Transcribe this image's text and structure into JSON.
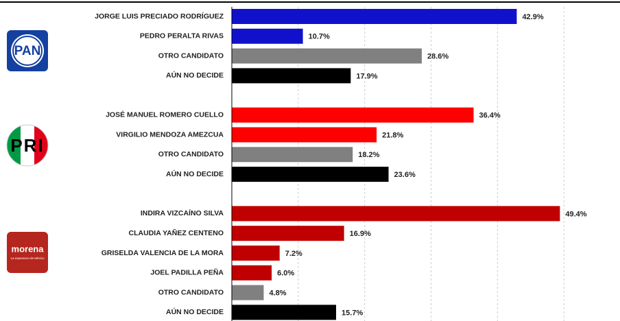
{
  "chart_data": {
    "type": "bar",
    "orientation": "horizontal",
    "grid": true,
    "xlim": [
      0,
      57
    ],
    "xticks": [
      10,
      20,
      30,
      40,
      50
    ],
    "groups": [
      {
        "logo": "PAN",
        "categories": [
          "JORGE LUIS PRECIADO RODRÍGUEZ",
          "PEDRO PERALTA RIVAS",
          "OTRO CANDIDATO",
          "AÚN NO DECIDE"
        ],
        "values": [
          42.9,
          10.7,
          28.6,
          17.9
        ],
        "value_labels": [
          "42.9%",
          "10.7%",
          "28.6%",
          "17.9%"
        ],
        "colors": [
          "#1111cc",
          "#1111cc",
          "#808080",
          "#000000"
        ]
      },
      {
        "logo": "PRI",
        "categories": [
          "JOSÉ MANUEL ROMERO CUELLO",
          "VIRGILIO MENDOZA AMEZCUA",
          "OTRO CANDIDATO",
          "AÚN NO DECIDE"
        ],
        "values": [
          36.4,
          21.8,
          18.2,
          23.6
        ],
        "value_labels": [
          "36.4%",
          "21.8%",
          "18.2%",
          "23.6%"
        ],
        "colors": [
          "#ff0000",
          "#ff0000",
          "#808080",
          "#000000"
        ]
      },
      {
        "logo": "morena",
        "logo_subtitle": "La esperanza de México",
        "categories": [
          "INDIRA VIZCAÍNO SILVA",
          "CLAUDIA YAÑEZ CENTENO",
          "GRISELDA VALENCIA DE LA MORA",
          "JOEL PADILLA PEÑA",
          "OTRO CANDIDATO",
          "AÚN NO DECIDE"
        ],
        "values": [
          49.4,
          16.9,
          7.2,
          6.0,
          4.8,
          15.7
        ],
        "value_labels": [
          "49.4%",
          "16.9%",
          "7.2%",
          "6.0%",
          "4.8%",
          "15.7%"
        ],
        "colors": [
          "#c00000",
          "#c00000",
          "#c00000",
          "#c00000",
          "#808080",
          "#000000"
        ]
      }
    ]
  }
}
